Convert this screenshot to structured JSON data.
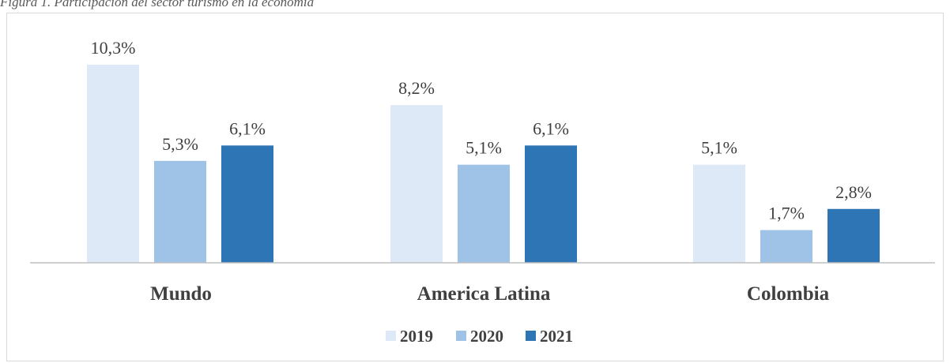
{
  "caption": "Figura 1. Participación del sector turismo en la economía",
  "colors": {
    "s2019": "#dde9f6",
    "s2020": "#9ec3e6",
    "s2021": "#2e75b6",
    "axis": "#bfbfbf",
    "text": "#404040"
  },
  "chart_data": {
    "type": "bar",
    "title": "",
    "categories": [
      "Mundo",
      "America Latina",
      "Colombia"
    ],
    "series": [
      {
        "name": "2019",
        "values": [
          10.3,
          8.2,
          5.1
        ],
        "labels": [
          "10,3%",
          "8,2%",
          "5,1%"
        ]
      },
      {
        "name": "2020",
        "values": [
          5.3,
          5.1,
          1.7
        ],
        "labels": [
          "5,3%",
          "5,1%",
          "1,7%"
        ]
      },
      {
        "name": "2021",
        "values": [
          6.1,
          6.1,
          2.8
        ],
        "labels": [
          "6,1%",
          "6,1%",
          "2,8%"
        ]
      }
    ],
    "ylim": [
      0,
      10.3
    ],
    "grid": false,
    "legend": "bottom",
    "data_labels": true
  }
}
